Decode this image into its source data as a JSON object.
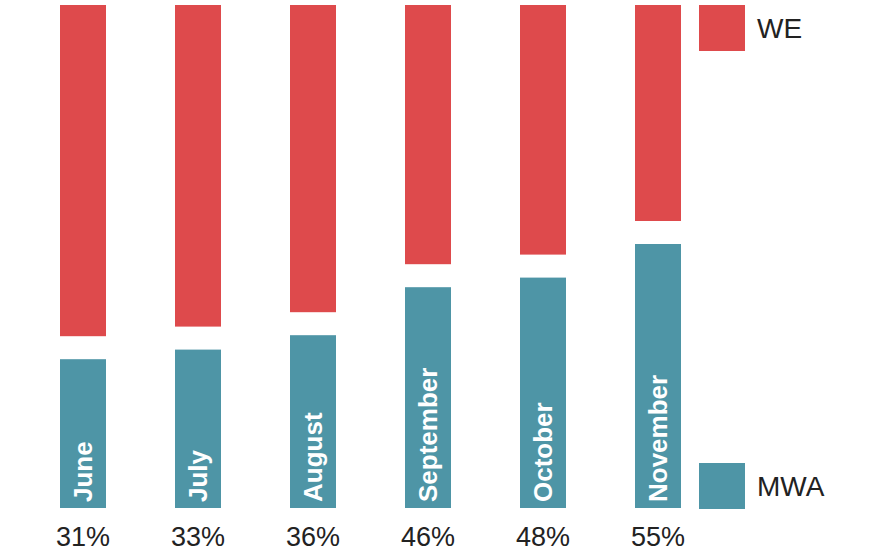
{
  "chart_data": {
    "type": "bar",
    "stacked": true,
    "tick_labels": false,
    "categories": [
      "June",
      "July",
      "August",
      "September",
      "October",
      "November"
    ],
    "ylim": [
      0,
      100
    ],
    "series": [
      {
        "name": "MWA",
        "color": "#4e95a6",
        "values": [
          31,
          33,
          36,
          46,
          48,
          55
        ],
        "value_labels": [
          "31%",
          "33%",
          "36%",
          "46%",
          "48%",
          "55%"
        ]
      },
      {
        "name": "WE",
        "color": "#de4a4c",
        "values": [
          69,
          67,
          64,
          54,
          52,
          45
        ]
      }
    ]
  }
}
